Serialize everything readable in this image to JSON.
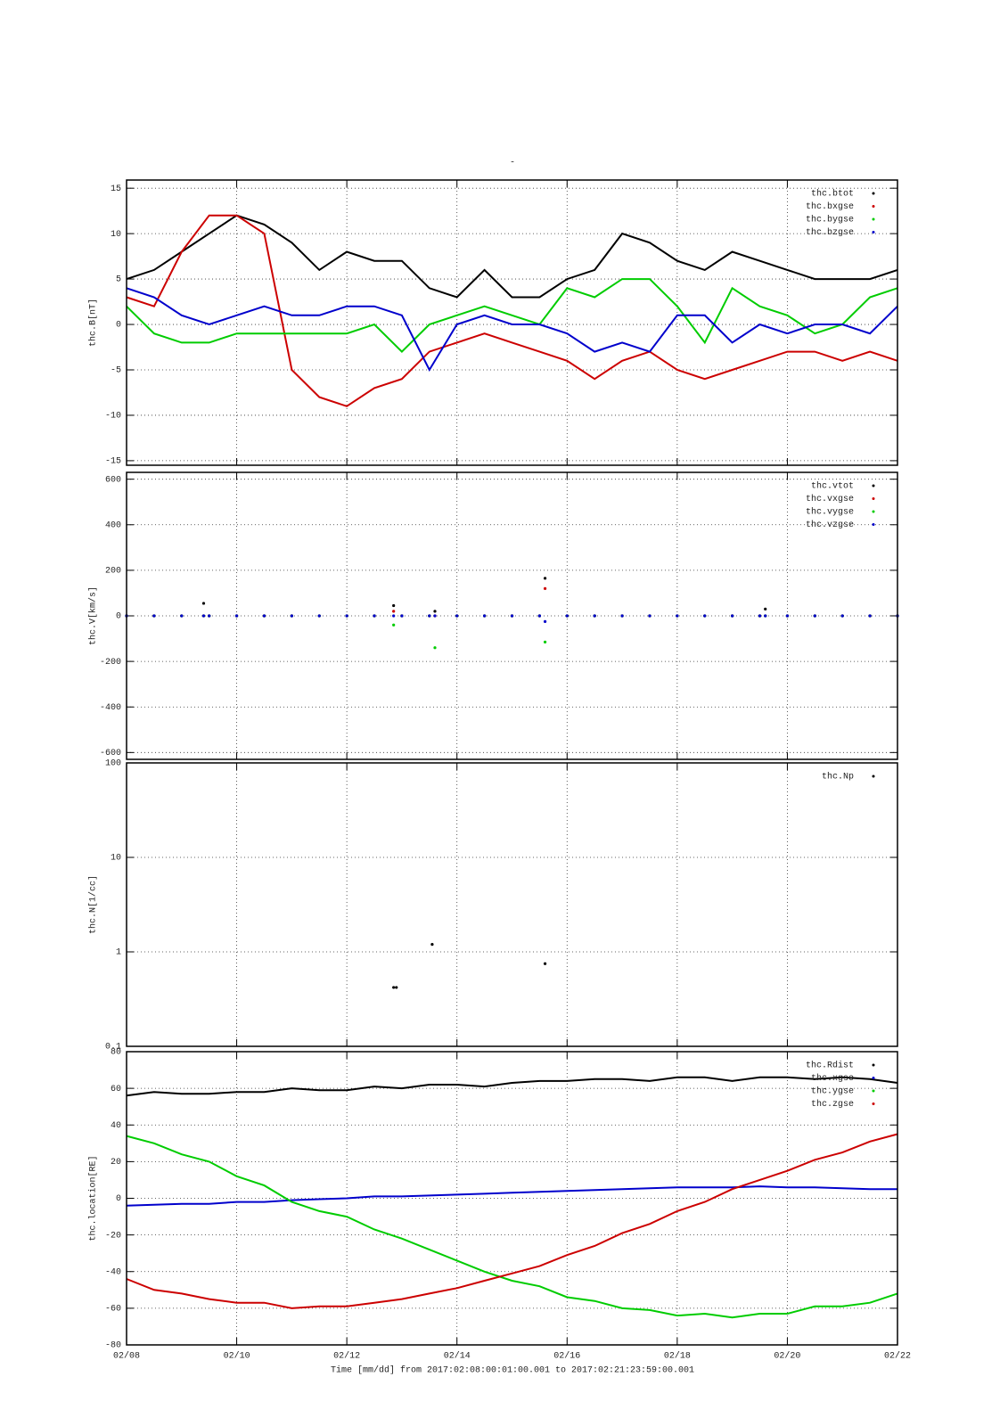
{
  "chart_data": [
    {
      "type": "line",
      "title": "-",
      "ylabel": "thc.B[nT]",
      "xlim": [
        0,
        14
      ],
      "ylim": [
        -15.5,
        15.9
      ],
      "yticks": [
        -15,
        -10,
        -5,
        0,
        5,
        10,
        15
      ],
      "grid": true,
      "legend": "upper right",
      "x": [
        0,
        0.5,
        1,
        1.5,
        2,
        2.5,
        3,
        3.5,
        4,
        4.5,
        5,
        5.5,
        6,
        6.5,
        7,
        7.5,
        8,
        8.5,
        9,
        9.5,
        10,
        10.5,
        11,
        11.5,
        12,
        12.5,
        13,
        13.5,
        14
      ],
      "series": [
        {
          "name": "thc.btot",
          "color": "#000000",
          "values": [
            5,
            6,
            8,
            10,
            12,
            11,
            9,
            6,
            8,
            7,
            7,
            4,
            3,
            6,
            3,
            3,
            5,
            6,
            10,
            9,
            7,
            6,
            8,
            7,
            6,
            5,
            5,
            5,
            6
          ]
        },
        {
          "name": "thc.bxgse",
          "color": "#cc0000",
          "values": [
            3,
            2,
            8,
            12,
            12,
            10,
            -5,
            -8,
            -9,
            -7,
            -6,
            -3,
            -2,
            -1,
            -2,
            -3,
            -4,
            -6,
            -4,
            -3,
            -5,
            -6,
            -5,
            -4,
            -3,
            -3,
            -4,
            -3,
            -4
          ]
        },
        {
          "name": "thc.bygse",
          "color": "#00cc00",
          "values": [
            2,
            -1,
            -2,
            -2,
            -1,
            -1,
            -1,
            -1,
            -1,
            0,
            -3,
            0,
            1,
            2,
            1,
            0,
            4,
            3,
            5,
            5,
            2,
            -2,
            4,
            2,
            1,
            -1,
            0,
            3,
            4
          ]
        },
        {
          "name": "thc.bzgse",
          "color": "#0000cc",
          "values": [
            4,
            3,
            1,
            0,
            1,
            2,
            1,
            1,
            2,
            2,
            1,
            -5,
            0,
            1,
            0,
            0,
            -1,
            -3,
            -2,
            -3,
            1,
            1,
            -2,
            0,
            -1,
            0,
            0,
            -1,
            2
          ]
        }
      ]
    },
    {
      "type": "scatter",
      "ylabel": "thc.V[km/s]",
      "xlim": [
        0,
        14
      ],
      "ylim": [
        -630,
        630
      ],
      "yticks": [
        -600,
        -400,
        -200,
        0,
        200,
        400,
        600
      ],
      "grid": true,
      "legend": "upper right",
      "x": [
        0,
        0.5,
        1,
        1.4,
        1.5,
        2,
        2.5,
        3,
        3.5,
        4,
        4.5,
        4.85,
        5,
        5.5,
        5.6,
        6,
        6.5,
        7,
        7.5,
        7.6,
        8,
        8.5,
        9,
        9.5,
        10,
        10.5,
        11,
        11.5,
        11.6,
        12,
        12.5,
        13,
        13.5,
        14
      ],
      "series": [
        {
          "name": "thc.vtot",
          "color": "#000000",
          "values": [
            0,
            0,
            0,
            55,
            0,
            0,
            0,
            0,
            0,
            0,
            0,
            45,
            0,
            0,
            20,
            0,
            0,
            0,
            0,
            165,
            0,
            0,
            0,
            0,
            0,
            0,
            0,
            0,
            30,
            0,
            0,
            0,
            0,
            0
          ]
        },
        {
          "name": "thc.vxgse",
          "color": "#cc0000",
          "values": [
            0,
            0,
            0,
            0,
            0,
            0,
            0,
            0,
            0,
            0,
            0,
            20,
            0,
            0,
            0,
            0,
            0,
            0,
            0,
            120,
            0,
            0,
            0,
            0,
            0,
            0,
            0,
            0,
            0,
            0,
            0,
            0,
            0,
            0
          ]
        },
        {
          "name": "thc.vygse",
          "color": "#00cc00",
          "values": [
            0,
            0,
            0,
            0,
            0,
            0,
            0,
            0,
            0,
            0,
            0,
            -40,
            0,
            0,
            -140,
            0,
            0,
            0,
            0,
            -115,
            0,
            0,
            0,
            0,
            0,
            0,
            0,
            0,
            0,
            0,
            0,
            0,
            0,
            0
          ]
        },
        {
          "name": "thc.vzgse",
          "color": "#0000cc",
          "values": [
            0,
            0,
            0,
            0,
            0,
            0,
            0,
            0,
            0,
            0,
            0,
            0,
            0,
            0,
            0,
            0,
            0,
            0,
            0,
            -25,
            0,
            0,
            0,
            0,
            0,
            0,
            0,
            0,
            0,
            0,
            0,
            0,
            0,
            0
          ]
        }
      ]
    },
    {
      "type": "scatter",
      "ylabel": "thc.N[1/cc]",
      "xlim": [
        0,
        14
      ],
      "ylim": [
        0.1,
        100
      ],
      "log": true,
      "yticks": [
        0.1,
        1,
        10,
        100
      ],
      "grid": true,
      "legend": "upper right",
      "x": [
        4.85,
        4.9,
        5.55,
        7.6
      ],
      "series": [
        {
          "name": "thc.Np",
          "color": "#000000",
          "values": [
            0.42,
            0.42,
            1.2,
            0.75
          ]
        }
      ]
    },
    {
      "type": "line",
      "ylabel": "thc.location[RE]",
      "xlabel": "Time [mm/dd]  from 2017:02:08:00:01:00.001  to  2017:02:21:23:59:00.001",
      "xlim": [
        0,
        14
      ],
      "ylim": [
        -80,
        80
      ],
      "xticks": [
        {
          "value": 0,
          "label": "02/08"
        },
        {
          "value": 2,
          "label": "02/10"
        },
        {
          "value": 4,
          "label": "02/12"
        },
        {
          "value": 6,
          "label": "02/14"
        },
        {
          "value": 8,
          "label": "02/16"
        },
        {
          "value": 10,
          "label": "02/18"
        },
        {
          "value": 12,
          "label": "02/20"
        },
        {
          "value": 14,
          "label": "02/22"
        }
      ],
      "yticks": [
        -80,
        -60,
        -40,
        -20,
        0,
        20,
        40,
        60,
        80
      ],
      "grid": true,
      "legend": "upper right",
      "x": [
        0,
        0.5,
        1,
        1.5,
        2,
        2.5,
        3,
        3.5,
        4,
        4.5,
        5,
        5.5,
        6,
        6.5,
        7,
        7.5,
        8,
        8.5,
        9,
        9.5,
        10,
        10.5,
        11,
        11.5,
        12,
        12.5,
        13,
        13.5,
        14
      ],
      "series": [
        {
          "name": "thc.Rdist",
          "color": "#000000",
          "values": [
            56,
            58,
            57,
            57,
            58,
            58,
            60,
            59,
            59,
            61,
            60,
            62,
            62,
            61,
            63,
            64,
            64,
            65,
            65,
            64,
            66,
            66,
            64,
            66,
            66,
            65,
            66,
            65,
            63
          ]
        },
        {
          "name": "thc.xgse",
          "color": "#0000cc",
          "values": [
            -4,
            -3.5,
            -3,
            -3,
            -2,
            -2,
            -1,
            -0.5,
            0,
            1,
            1,
            1.5,
            2,
            2.5,
            3,
            3.5,
            4,
            4.5,
            5,
            5.5,
            6,
            6,
            6,
            6.5,
            6,
            6,
            5.5,
            5,
            5
          ]
        },
        {
          "name": "thc.ygse",
          "color": "#00cc00",
          "values": [
            34,
            30,
            24,
            20,
            12,
            7,
            -2,
            -7,
            -10,
            -17,
            -22,
            -28,
            -34,
            -40,
            -45,
            -48,
            -54,
            -56,
            -60,
            -61,
            -64,
            -63,
            -65,
            -63,
            -63,
            -59,
            -59,
            -57,
            -52
          ]
        },
        {
          "name": "thc.zgse",
          "color": "#cc0000",
          "values": [
            -44,
            -50,
            -52,
            -55,
            -57,
            -57,
            -60,
            -59,
            -59,
            -57,
            -55,
            -52,
            -49,
            -45,
            -41,
            -37,
            -31,
            -26,
            -19,
            -14,
            -7,
            -2,
            5,
            10,
            15,
            21,
            25,
            31,
            35
          ]
        }
      ]
    }
  ]
}
